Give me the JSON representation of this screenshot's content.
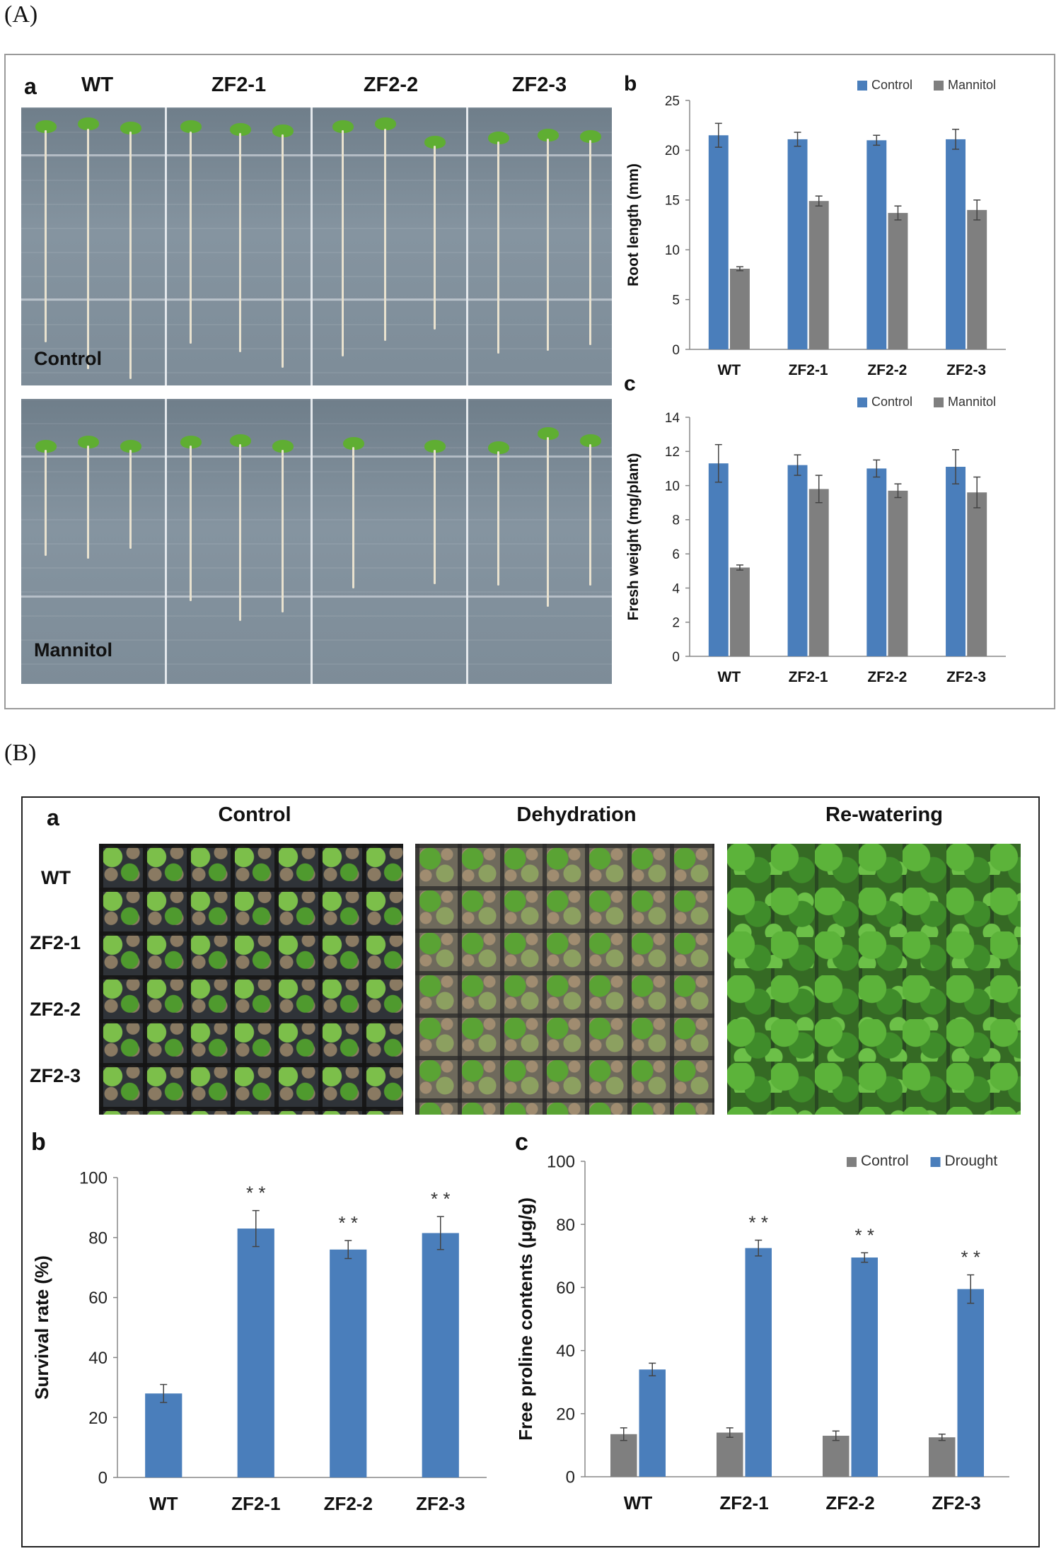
{
  "figure": {
    "part_a_label": "(A)",
    "part_b_label": "(B)",
    "panel_a": {
      "letter": "a",
      "columns": [
        "WT",
        "ZF2-1",
        "ZF2-2",
        "ZF2-3"
      ],
      "conditions": [
        "Control",
        "Mannitol"
      ]
    },
    "panel_b": {
      "letter": "a",
      "columns": [
        "Control",
        "Dehydration",
        "Re-watering"
      ],
      "rows": [
        "WT",
        "ZF2-1",
        "ZF2-2",
        "ZF2-3"
      ]
    }
  },
  "colors": {
    "blue": "#4a7ebb",
    "gray": "#7f7f7f"
  },
  "chart_data": [
    {
      "id": "A-b",
      "letter": "b",
      "type": "bar",
      "categories": [
        "WT",
        "ZF2-1",
        "ZF2-2",
        "ZF2-3"
      ],
      "series": [
        {
          "name": "Control",
          "color": "#4a7ebb",
          "values": [
            21.5,
            21.1,
            21.0,
            21.1
          ],
          "errors": [
            1.2,
            0.7,
            0.5,
            1.0
          ],
          "stars": [
            "",
            "",
            "",
            ""
          ]
        },
        {
          "name": "Mannitol",
          "color": "#7f7f7f",
          "values": [
            8.1,
            14.9,
            13.7,
            14.0
          ],
          "errors": [
            0.2,
            0.5,
            0.7,
            1.0
          ],
          "stars": [
            "",
            "",
            "",
            ""
          ]
        }
      ],
      "ylabel": "Root length (mm)",
      "xlabel": "",
      "ylim": [
        0,
        25
      ],
      "yticks": [
        0,
        5,
        10,
        15,
        20,
        25
      ],
      "legend": "top-right",
      "grid": false
    },
    {
      "id": "A-c",
      "letter": "c",
      "type": "bar",
      "categories": [
        "WT",
        "ZF2-1",
        "ZF2-2",
        "ZF2-3"
      ],
      "series": [
        {
          "name": "Control",
          "color": "#4a7ebb",
          "values": [
            11.3,
            11.2,
            11.0,
            11.1
          ],
          "errors": [
            1.1,
            0.6,
            0.5,
            1.0
          ],
          "stars": [
            "",
            "",
            "",
            ""
          ]
        },
        {
          "name": "Mannitol",
          "color": "#7f7f7f",
          "values": [
            5.2,
            9.8,
            9.7,
            9.6
          ],
          "errors": [
            0.15,
            0.8,
            0.4,
            0.9
          ],
          "stars": [
            "",
            "",
            "",
            ""
          ]
        }
      ],
      "ylabel": "Fresh weight (mg/plant)",
      "xlabel": "",
      "ylim": [
        0,
        14
      ],
      "yticks": [
        0,
        2,
        4,
        6,
        8,
        10,
        12,
        14
      ],
      "legend": "top-right",
      "grid": false
    },
    {
      "id": "B-b",
      "letter": "b",
      "type": "bar",
      "categories": [
        "WT",
        "ZF2-1",
        "ZF2-2",
        "ZF2-3"
      ],
      "series": [
        {
          "color": "#4a7ebb",
          "values": [
            28,
            83,
            76,
            81.5
          ],
          "errors": [
            3,
            6,
            3,
            5.5
          ],
          "stars": [
            "",
            "* *",
            "* *",
            "* *"
          ]
        }
      ],
      "ylabel": "Survival rate (%)",
      "xlabel": "",
      "ylim": [
        0,
        100
      ],
      "yticks": [
        0,
        20,
        40,
        60,
        80,
        100
      ],
      "legend": "none",
      "grid": false
    },
    {
      "id": "B-c",
      "letter": "c",
      "type": "bar",
      "categories": [
        "WT",
        "ZF2-1",
        "ZF2-2",
        "ZF2-3"
      ],
      "series": [
        {
          "name": "Control",
          "color": "#7f7f7f",
          "values": [
            13.5,
            14,
            13,
            12.5
          ],
          "errors": [
            2,
            1.5,
            1.5,
            1
          ],
          "stars": [
            "",
            "",
            "",
            ""
          ]
        },
        {
          "name": "Drought",
          "color": "#4a7ebb",
          "values": [
            34,
            72.5,
            69.5,
            59.5
          ],
          "errors": [
            2,
            2.5,
            1.5,
            4.5
          ],
          "stars": [
            "",
            "* *",
            "* *",
            "* *"
          ]
        }
      ],
      "ylabel": "Free proline contents (μg/g)",
      "xlabel": "",
      "ylim": [
        0,
        100
      ],
      "yticks": [
        0,
        20,
        40,
        60,
        80,
        100
      ],
      "legend": "top-right",
      "grid": false
    }
  ]
}
